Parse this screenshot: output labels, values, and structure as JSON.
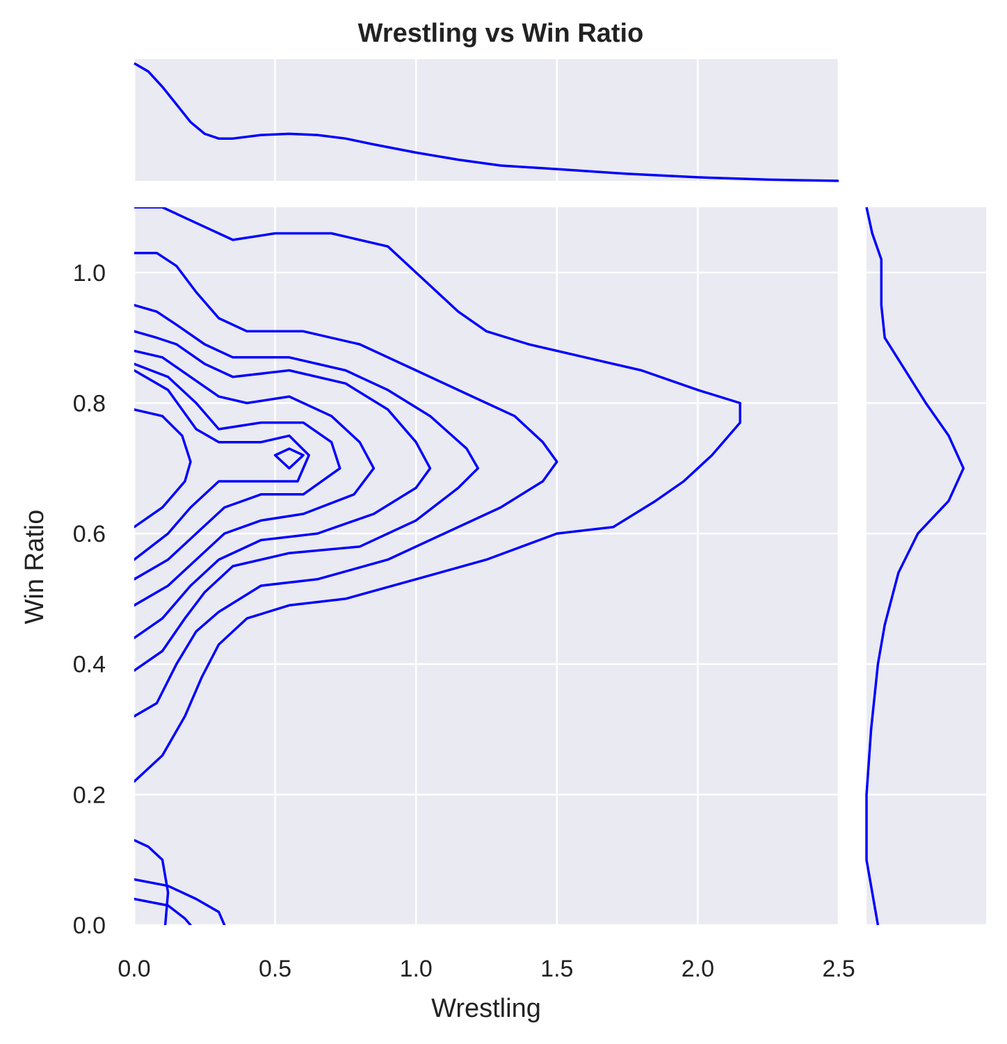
{
  "chart_data": {
    "type": "kde-joint",
    "title": "Wrestling vs Win Ratio",
    "xlabel": "Wrestling",
    "ylabel": "Win Ratio",
    "xlim": [
      0,
      2.5
    ],
    "ylim": [
      0,
      1.1
    ],
    "x_ticks": [
      0.0,
      0.5,
      1.0,
      1.5,
      2.0,
      2.5
    ],
    "x_tick_labels": [
      "0.0",
      "0.5",
      "1.0",
      "1.5",
      "2.0",
      "2.5"
    ],
    "y_ticks": [
      0.0,
      0.2,
      0.4,
      0.6,
      0.8,
      1.0
    ],
    "y_tick_labels": [
      "0.0",
      "0.2",
      "0.4",
      "0.6",
      "0.8",
      "1.0"
    ],
    "grid": true,
    "colors": {
      "line": "#0000ff",
      "panel_bg": "#eaeaf2",
      "grid": "#ffffff"
    },
    "marginal_x": {
      "ymax": 1.0,
      "points": [
        [
          0.0,
          1.0
        ],
        [
          0.05,
          0.93
        ],
        [
          0.1,
          0.8
        ],
        [
          0.15,
          0.65
        ],
        [
          0.2,
          0.5
        ],
        [
          0.25,
          0.4
        ],
        [
          0.3,
          0.36
        ],
        [
          0.35,
          0.36
        ],
        [
          0.45,
          0.39
        ],
        [
          0.55,
          0.4
        ],
        [
          0.65,
          0.39
        ],
        [
          0.75,
          0.36
        ],
        [
          0.85,
          0.31
        ],
        [
          1.0,
          0.24
        ],
        [
          1.15,
          0.18
        ],
        [
          1.3,
          0.13
        ],
        [
          1.5,
          0.1
        ],
        [
          1.75,
          0.06
        ],
        [
          2.0,
          0.03
        ],
        [
          2.25,
          0.01
        ],
        [
          2.5,
          0.0
        ]
      ]
    },
    "marginal_y": {
      "xmax": 1.0,
      "points": [
        [
          0.0,
          0.1
        ],
        [
          0.05,
          0.05
        ],
        [
          0.1,
          0.0
        ],
        [
          0.2,
          0.0
        ],
        [
          0.3,
          0.04
        ],
        [
          0.4,
          0.1
        ],
        [
          0.46,
          0.16
        ],
        [
          0.54,
          0.28
        ],
        [
          0.6,
          0.45
        ],
        [
          0.65,
          0.72
        ],
        [
          0.7,
          0.85
        ],
        [
          0.75,
          0.72
        ],
        [
          0.8,
          0.52
        ],
        [
          0.9,
          0.16
        ],
        [
          0.95,
          0.13
        ],
        [
          1.02,
          0.13
        ],
        [
          1.06,
          0.05
        ],
        [
          1.1,
          0.0
        ]
      ]
    },
    "contours": [
      [
        [
          0.0,
          0.22
        ],
        [
          0.1,
          0.26
        ],
        [
          0.18,
          0.32
        ],
        [
          0.24,
          0.38
        ],
        [
          0.3,
          0.43
        ],
        [
          0.4,
          0.47
        ],
        [
          0.55,
          0.49
        ],
        [
          0.75,
          0.5
        ],
        [
          1.0,
          0.53
        ],
        [
          1.25,
          0.56
        ],
        [
          1.5,
          0.6
        ],
        [
          1.7,
          0.61
        ],
        [
          1.85,
          0.65
        ],
        [
          1.95,
          0.68
        ],
        [
          2.05,
          0.72
        ],
        [
          2.15,
          0.77
        ],
        [
          2.15,
          0.8
        ],
        [
          2.0,
          0.82
        ],
        [
          1.8,
          0.85
        ],
        [
          1.6,
          0.87
        ],
        [
          1.4,
          0.89
        ],
        [
          1.25,
          0.91
        ],
        [
          1.15,
          0.94
        ],
        [
          1.05,
          0.98
        ],
        [
          0.9,
          1.04
        ],
        [
          0.7,
          1.06
        ],
        [
          0.5,
          1.06
        ],
        [
          0.35,
          1.05
        ],
        [
          0.2,
          1.08
        ],
        [
          0.1,
          1.1
        ],
        [
          0.0,
          1.1
        ]
      ],
      [
        [
          0.0,
          0.32
        ],
        [
          0.08,
          0.34
        ],
        [
          0.15,
          0.4
        ],
        [
          0.22,
          0.45
        ],
        [
          0.3,
          0.48
        ],
        [
          0.45,
          0.52
        ],
        [
          0.65,
          0.53
        ],
        [
          0.9,
          0.56
        ],
        [
          1.1,
          0.6
        ],
        [
          1.3,
          0.64
        ],
        [
          1.45,
          0.68
        ],
        [
          1.5,
          0.71
        ],
        [
          1.45,
          0.74
        ],
        [
          1.35,
          0.78
        ],
        [
          1.2,
          0.81
        ],
        [
          1.0,
          0.85
        ],
        [
          0.8,
          0.89
        ],
        [
          0.6,
          0.91
        ],
        [
          0.4,
          0.91
        ],
        [
          0.3,
          0.93
        ],
        [
          0.22,
          0.97
        ],
        [
          0.15,
          1.01
        ],
        [
          0.08,
          1.03
        ],
        [
          0.0,
          1.03
        ]
      ],
      [
        [
          0.0,
          0.39
        ],
        [
          0.1,
          0.42
        ],
        [
          0.18,
          0.47
        ],
        [
          0.25,
          0.51
        ],
        [
          0.35,
          0.55
        ],
        [
          0.55,
          0.57
        ],
        [
          0.8,
          0.58
        ],
        [
          1.0,
          0.62
        ],
        [
          1.15,
          0.67
        ],
        [
          1.22,
          0.7
        ],
        [
          1.18,
          0.73
        ],
        [
          1.05,
          0.78
        ],
        [
          0.9,
          0.82
        ],
        [
          0.75,
          0.85
        ],
        [
          0.55,
          0.87
        ],
        [
          0.35,
          0.87
        ],
        [
          0.25,
          0.89
        ],
        [
          0.15,
          0.92
        ],
        [
          0.08,
          0.94
        ],
        [
          0.0,
          0.95
        ]
      ],
      [
        [
          0.0,
          0.44
        ],
        [
          0.1,
          0.47
        ],
        [
          0.2,
          0.52
        ],
        [
          0.3,
          0.56
        ],
        [
          0.45,
          0.59
        ],
        [
          0.65,
          0.6
        ],
        [
          0.85,
          0.63
        ],
        [
          1.0,
          0.67
        ],
        [
          1.05,
          0.7
        ],
        [
          1.0,
          0.74
        ],
        [
          0.9,
          0.79
        ],
        [
          0.75,
          0.83
        ],
        [
          0.55,
          0.85
        ],
        [
          0.35,
          0.84
        ],
        [
          0.25,
          0.86
        ],
        [
          0.15,
          0.89
        ],
        [
          0.08,
          0.9
        ],
        [
          0.0,
          0.91
        ]
      ],
      [
        [
          0.0,
          0.49
        ],
        [
          0.12,
          0.52
        ],
        [
          0.22,
          0.56
        ],
        [
          0.32,
          0.6
        ],
        [
          0.45,
          0.62
        ],
        [
          0.6,
          0.63
        ],
        [
          0.78,
          0.66
        ],
        [
          0.85,
          0.7
        ],
        [
          0.8,
          0.74
        ],
        [
          0.7,
          0.78
        ],
        [
          0.55,
          0.81
        ],
        [
          0.4,
          0.8
        ],
        [
          0.3,
          0.81
        ],
        [
          0.2,
          0.84
        ],
        [
          0.1,
          0.87
        ],
        [
          0.0,
          0.88
        ]
      ],
      [
        [
          0.0,
          0.53
        ],
        [
          0.12,
          0.56
        ],
        [
          0.22,
          0.6
        ],
        [
          0.32,
          0.64
        ],
        [
          0.45,
          0.66
        ],
        [
          0.6,
          0.66
        ],
        [
          0.73,
          0.7
        ],
        [
          0.7,
          0.74
        ],
        [
          0.6,
          0.77
        ],
        [
          0.45,
          0.77
        ],
        [
          0.3,
          0.76
        ],
        [
          0.22,
          0.8
        ],
        [
          0.12,
          0.84
        ],
        [
          0.0,
          0.86
        ]
      ],
      [
        [
          0.0,
          0.56
        ],
        [
          0.12,
          0.6
        ],
        [
          0.2,
          0.64
        ],
        [
          0.3,
          0.68
        ],
        [
          0.45,
          0.68
        ],
        [
          0.58,
          0.68
        ],
        [
          0.62,
          0.72
        ],
        [
          0.55,
          0.75
        ],
        [
          0.45,
          0.74
        ],
        [
          0.3,
          0.74
        ],
        [
          0.22,
          0.76
        ],
        [
          0.12,
          0.82
        ],
        [
          0.0,
          0.85
        ]
      ],
      [
        [
          0.0,
          0.61
        ],
        [
          0.1,
          0.64
        ],
        [
          0.18,
          0.68
        ],
        [
          0.2,
          0.71
        ],
        [
          0.17,
          0.75
        ],
        [
          0.1,
          0.78
        ],
        [
          0.0,
          0.79
        ]
      ],
      [
        [
          0.5,
          0.72
        ],
        [
          0.55,
          0.7
        ],
        [
          0.6,
          0.72
        ],
        [
          0.55,
          0.73
        ],
        [
          0.5,
          0.72
        ]
      ],
      [
        [
          0.0,
          0.07
        ],
        [
          0.12,
          0.06
        ],
        [
          0.22,
          0.04
        ],
        [
          0.3,
          0.02
        ],
        [
          0.32,
          0.0
        ]
      ],
      [
        [
          0.0,
          0.04
        ],
        [
          0.12,
          0.03
        ],
        [
          0.18,
          0.01
        ],
        [
          0.2,
          0.0
        ]
      ],
      [
        [
          0.0,
          0.13
        ],
        [
          0.05,
          0.12
        ],
        [
          0.1,
          0.1
        ],
        [
          0.12,
          0.05
        ],
        [
          0.11,
          0.0
        ]
      ]
    ]
  }
}
